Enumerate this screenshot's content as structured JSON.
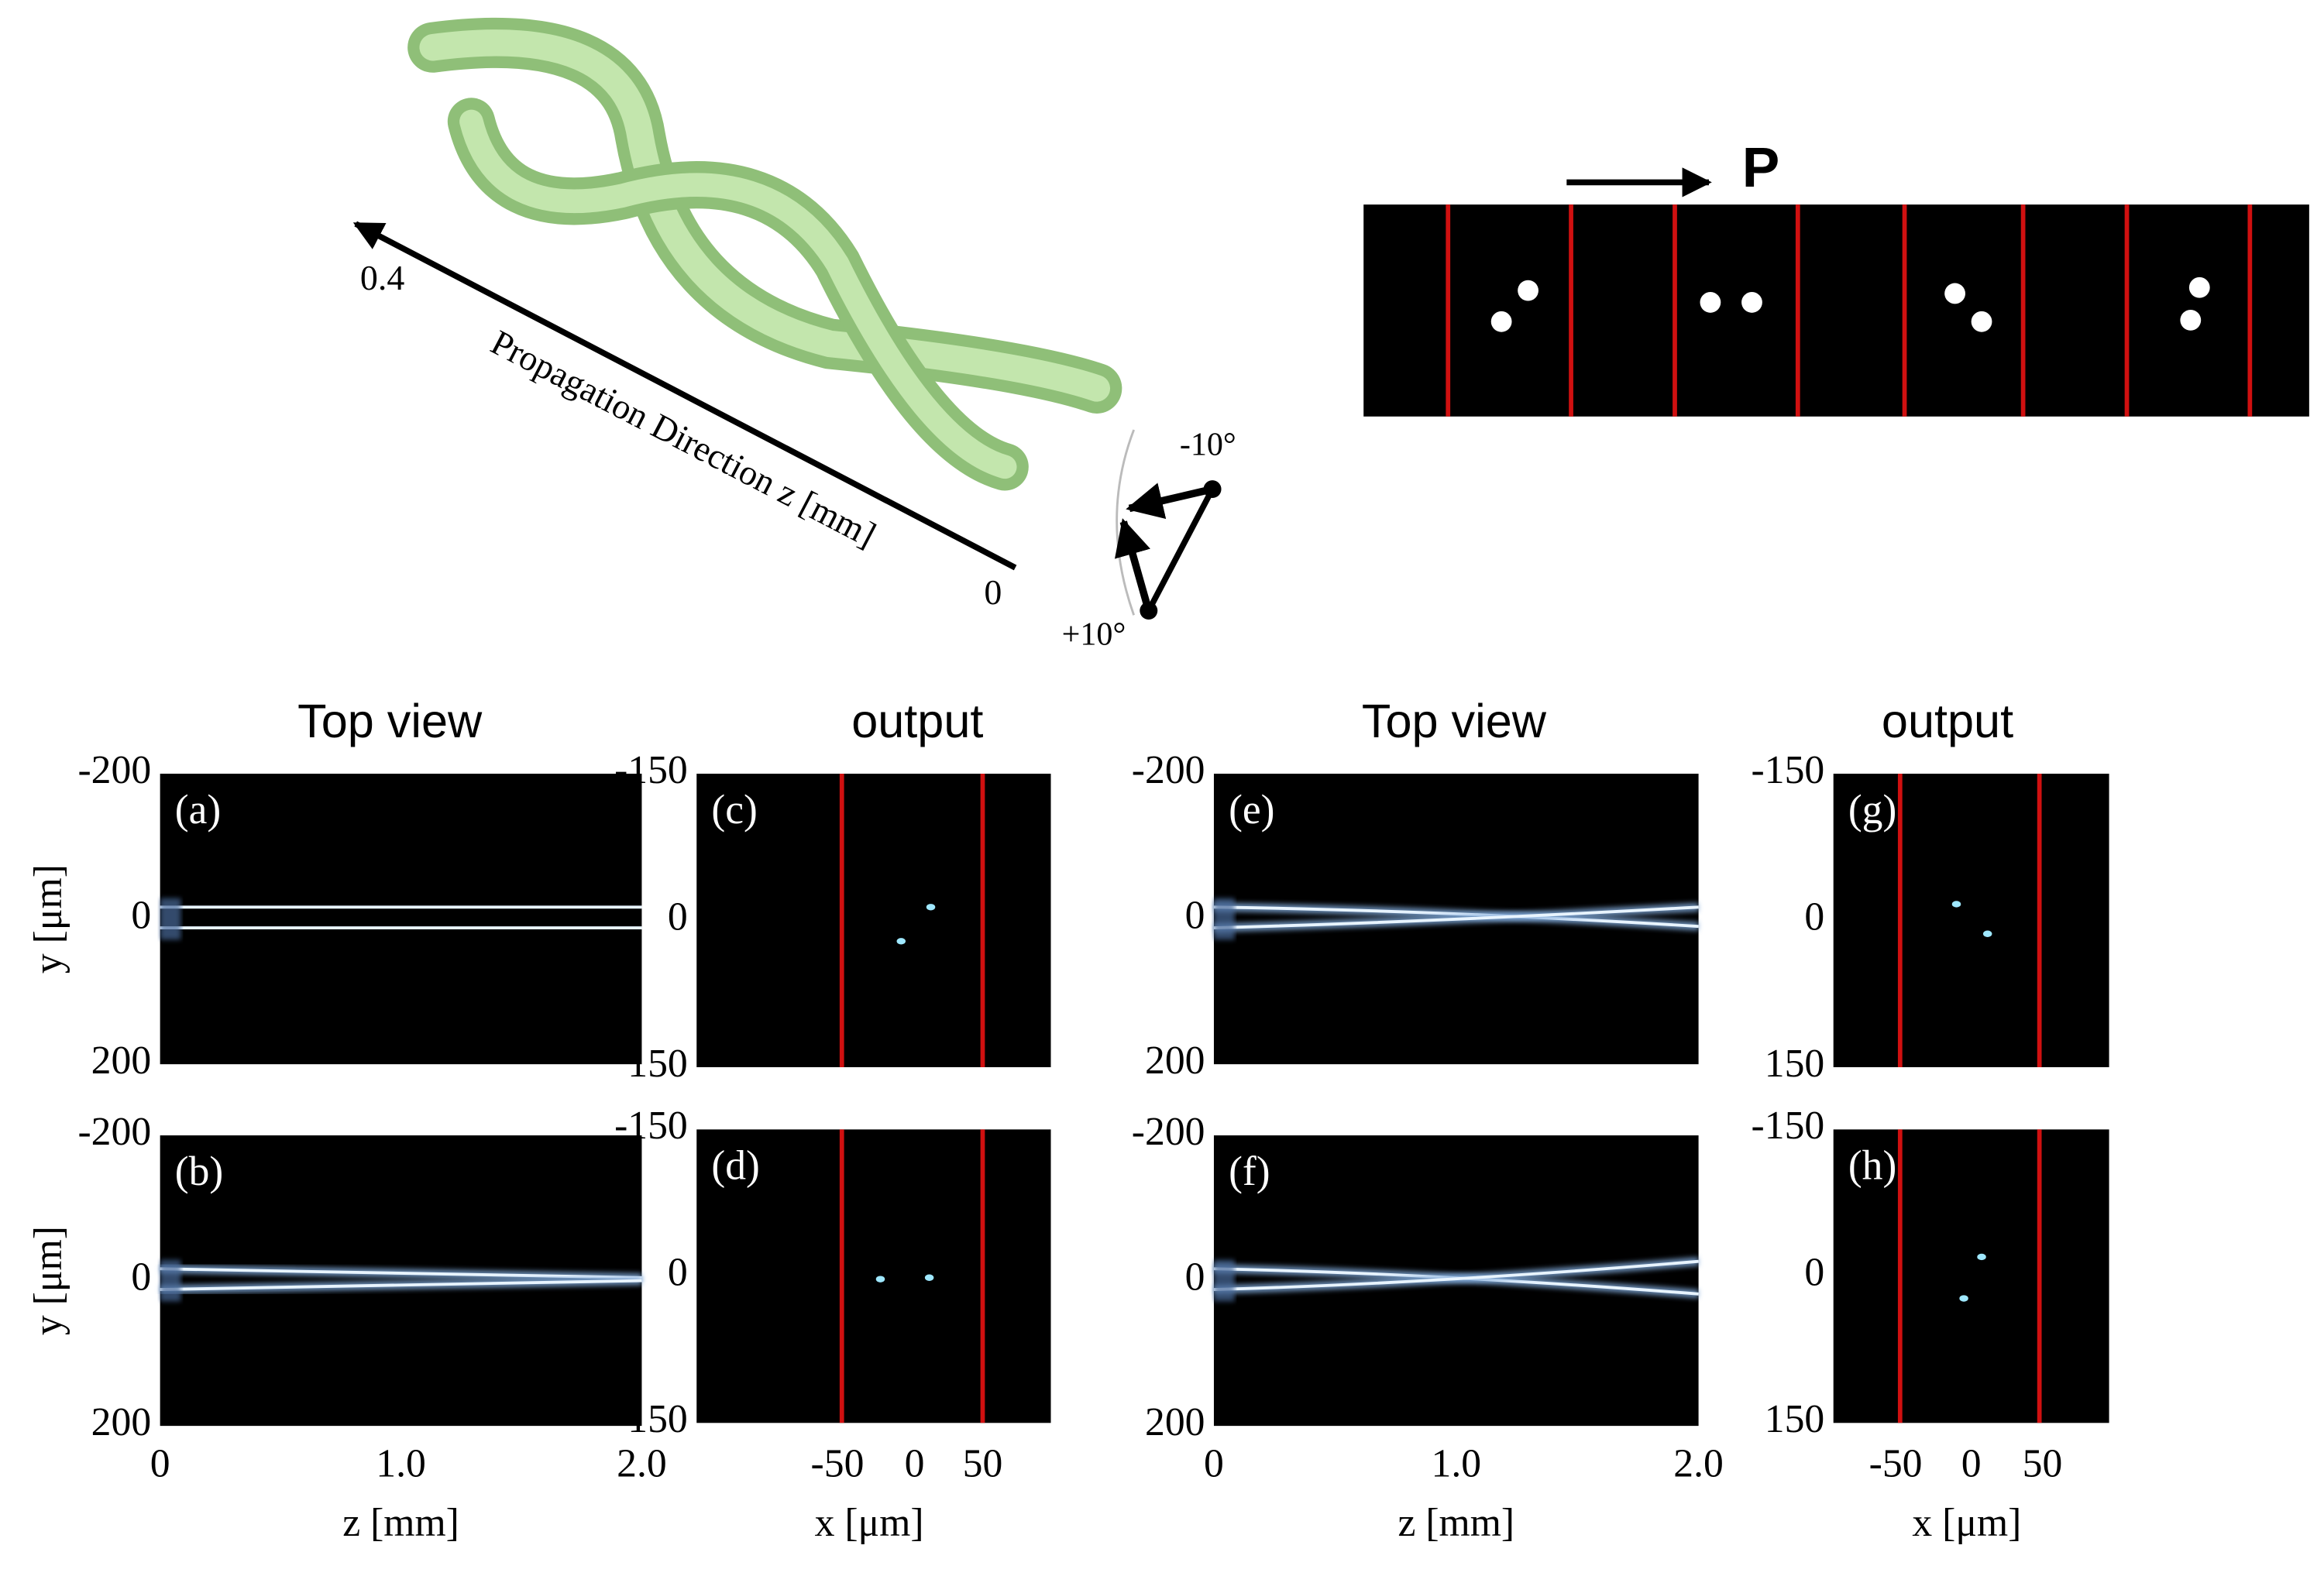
{
  "illustration": {
    "axis_start": "0.4",
    "axis_end": "0",
    "axis_label": "Propagation Direction z [mm]",
    "angle_minus": "-10°",
    "angle_plus": "+10°"
  },
  "polarization": {
    "label": "P"
  },
  "groups": [
    {
      "title": "Top view",
      "xlabel": "z [mm]",
      "ylabel": "y [μm]",
      "xticks": [
        "0",
        "1.0",
        "2.0"
      ],
      "yticks": [
        "-200",
        "0",
        "200"
      ],
      "panels": [
        "(a)",
        "(b)"
      ]
    },
    {
      "title": "output",
      "xlabel": "x [μm]",
      "xticks": [
        "-50",
        "0",
        "50"
      ],
      "yticks": [
        "-150",
        "0",
        "150"
      ],
      "panels": [
        "(c)",
        "(d)"
      ]
    },
    {
      "title": "Top view",
      "xlabel": "z [mm]",
      "xticks": [
        "0",
        "1.0",
        "2.0"
      ],
      "yticks": [
        "-200",
        "0",
        "200"
      ],
      "panels": [
        "(e)",
        "(f)"
      ]
    },
    {
      "title": "output",
      "xlabel": "x [μm]",
      "xticks": [
        "-50",
        "0",
        "50"
      ],
      "yticks": [
        "-150",
        "0",
        "150"
      ],
      "panels": [
        "(g)",
        "(h)"
      ]
    }
  ]
}
